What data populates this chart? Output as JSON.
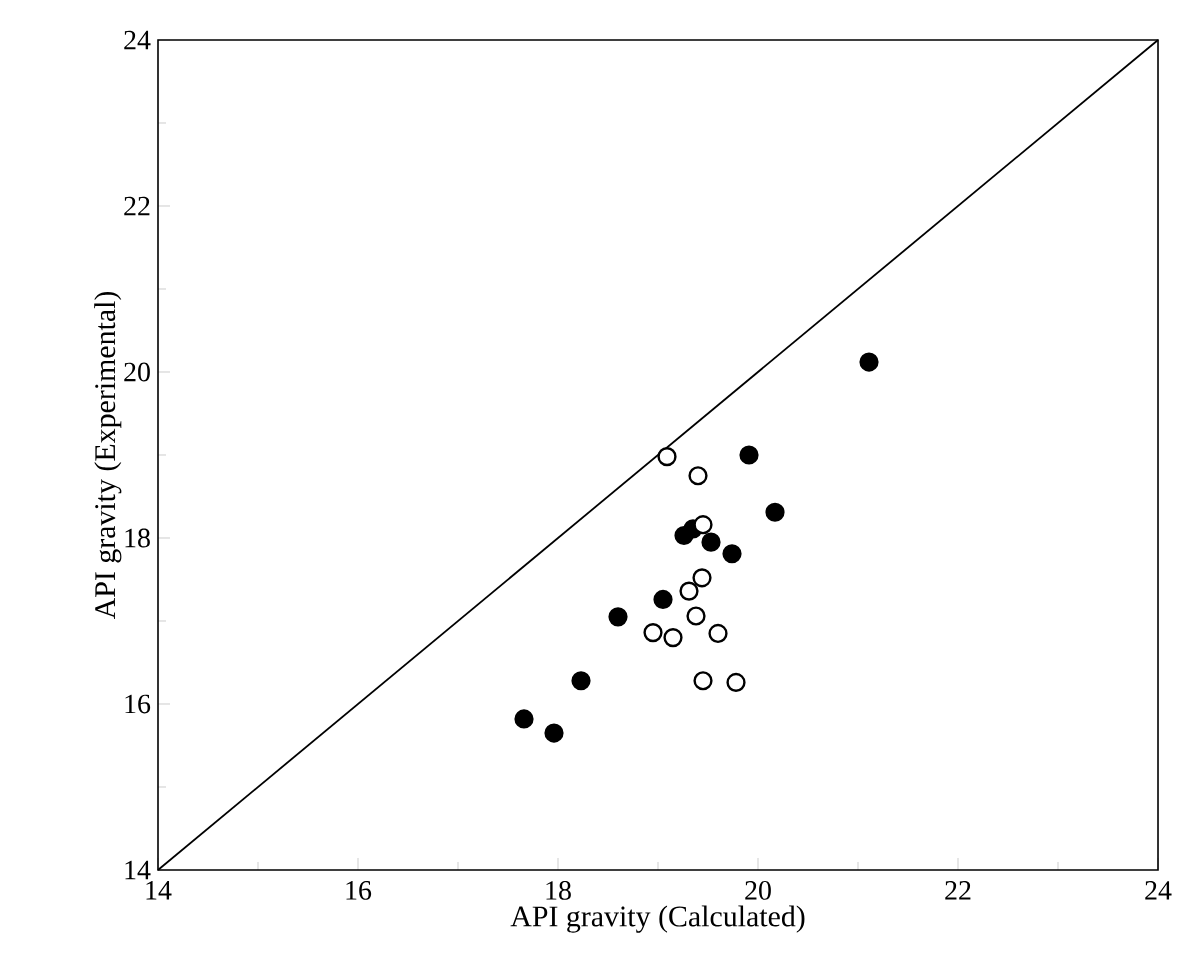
{
  "chart_data": {
    "type": "scatter",
    "xlabel": "API gravity (Calculated)",
    "ylabel": "API gravity (Experimental)",
    "xlim": [
      14,
      24
    ],
    "ylim": [
      14,
      24
    ],
    "xticks": [
      14,
      16,
      18,
      20,
      22,
      24
    ],
    "yticks": [
      14,
      16,
      18,
      20,
      22,
      24
    ],
    "grid": false,
    "marker": "circle",
    "series": [
      {
        "color": "#000000",
        "x": [
          17.66,
          17.96,
          18.23,
          18.6,
          19.05,
          19.26,
          19.35,
          19.53,
          19.74,
          19.91,
          20.17,
          21.11
        ],
        "values": [
          15.82,
          15.65,
          16.28,
          17.05,
          17.26,
          18.03,
          18.11,
          17.95,
          17.81,
          19.0,
          18.31,
          20.12
        ]
      },
      {
        "color": "#ffffff",
        "x": [
          19.09,
          19.4,
          19.45,
          19.44,
          19.31,
          19.38,
          18.95,
          19.15,
          19.6,
          19.45,
          19.78
        ],
        "values": [
          18.98,
          18.75,
          18.16,
          17.52,
          17.36,
          17.06,
          16.86,
          16.8,
          16.85,
          16.28,
          16.26
        ]
      },
      {
        "type": "line",
        "color": "#000000",
        "marker": "none",
        "line_style": "solid",
        "x": [
          14,
          24
        ],
        "values": [
          14,
          24
        ]
      }
    ]
  }
}
